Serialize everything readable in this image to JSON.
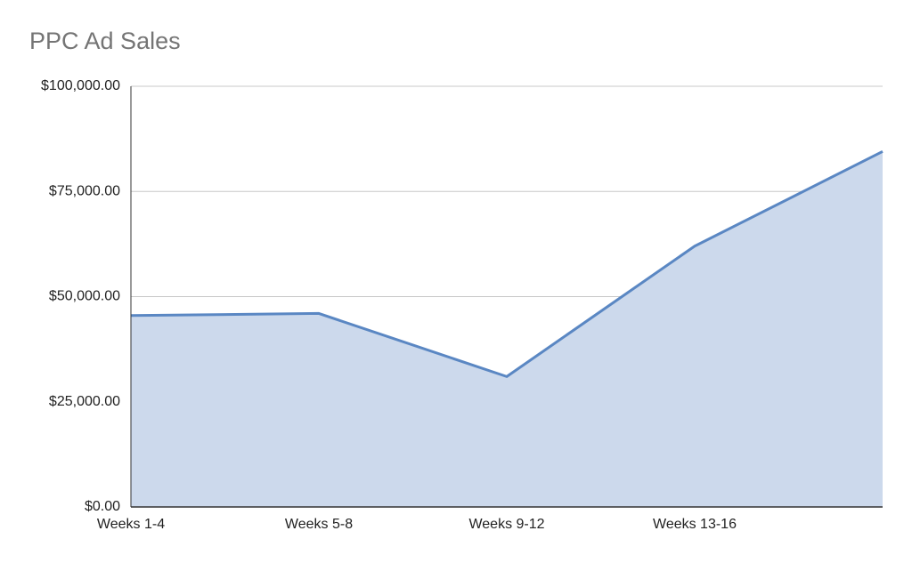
{
  "chart_data": {
    "type": "area",
    "title": "PPC Ad Sales",
    "categories": [
      "Weeks 1-4",
      "Weeks 5-8",
      "Weeks 9-12",
      "Weeks 13-16",
      null
    ],
    "values": [
      45500,
      46000,
      31000,
      62000,
      84500
    ],
    "color": "#5a87c3",
    "area_color": "#ccd9ec",
    "ylim": [
      0,
      100000
    ],
    "yticks": [
      {
        "value": 0,
        "label": "$0.00"
      },
      {
        "value": 25000,
        "label": "$25,000.00"
      },
      {
        "value": 50000,
        "label": "$50,000.00"
      },
      {
        "value": 75000,
        "label": "$75,000.00"
      },
      {
        "value": 100000,
        "label": "$100,000.00"
      }
    ],
    "grid": true
  }
}
